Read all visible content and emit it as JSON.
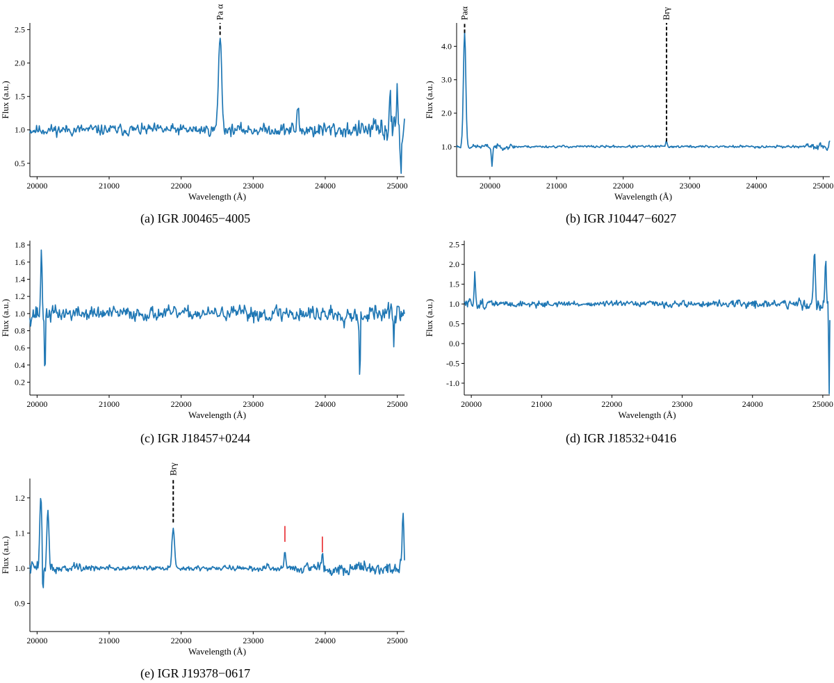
{
  "figure": {
    "captions": [
      "(a) IGR J00465−4005",
      "(b) IGR J10447−6027",
      "(c) IGR J18457+0244",
      "(d) IGR J18532+0416",
      "(e) IGR J19378−0617"
    ]
  },
  "colors": {
    "line": "#1f77b4",
    "marker": "#e8262b",
    "axis": "#000000"
  },
  "chart_data": [
    {
      "type": "line",
      "xlabel": "Wavelength (Å)",
      "ylabel": "Flux (a.u.)",
      "xlim": [
        19900,
        25100
      ],
      "ylim": [
        0.3,
        2.6
      ],
      "xticks": [
        20000,
        21000,
        22000,
        23000,
        24000,
        25000
      ],
      "yticks": [
        0.5,
        1.0,
        1.5,
        2.0,
        2.5
      ],
      "ytick_labels": [
        "0.5",
        "1.0",
        "1.5",
        "2.0",
        "2.5"
      ],
      "baseline": 1.0,
      "noise": 0.13,
      "noise_profile": [
        [
          19900,
          0.12
        ],
        [
          23300,
          0.12
        ],
        [
          23600,
          0.18
        ],
        [
          24600,
          0.18
        ],
        [
          24800,
          0.3
        ],
        [
          25100,
          0.35
        ]
      ],
      "features": [
        {
          "center": 22540,
          "amp": 1.4,
          "width": 22
        },
        {
          "center": 23620,
          "amp": 0.35,
          "width": 12
        },
        {
          "center": 24900,
          "amp": 0.65,
          "width": 10
        },
        {
          "center": 25000,
          "amp": 0.6,
          "width": 10
        },
        {
          "center": 25050,
          "amp": -0.55,
          "width": 8
        }
      ],
      "lines": [
        {
          "label": "Pa α",
          "x": 22540,
          "y_bottom": 2.42,
          "y_top": 2.6,
          "dashed": true
        }
      ],
      "seed": 11
    },
    {
      "type": "line",
      "xlabel": "Wavelength (Å)",
      "ylabel": "Flux (a.u.)",
      "xlim": [
        19500,
        25100
      ],
      "ylim": [
        0.1,
        4.7
      ],
      "xticks": [
        20000,
        21000,
        22000,
        23000,
        24000,
        25000
      ],
      "yticks": [
        1.0,
        2.0,
        3.0,
        4.0
      ],
      "ytick_labels": [
        "1.0",
        "2.0",
        "3.0",
        "4.0"
      ],
      "baseline": 1.0,
      "noise": 0.06,
      "noise_profile": [
        [
          19500,
          0.08
        ],
        [
          20300,
          0.12
        ],
        [
          20500,
          0.05
        ],
        [
          24700,
          0.06
        ],
        [
          24900,
          0.15
        ],
        [
          25100,
          0.2
        ]
      ],
      "features": [
        {
          "center": 19620,
          "amp": 3.45,
          "width": 18
        },
        {
          "center": 20030,
          "amp": -0.55,
          "width": 10
        },
        {
          "center": 22650,
          "amp": 0.15,
          "width": 12
        }
      ],
      "lines": [
        {
          "label": "Paα",
          "x": 19620,
          "y_bottom": 4.4,
          "y_top": 4.7,
          "dashed": true
        },
        {
          "label": "Brγ",
          "x": 22650,
          "y_bottom": 1.15,
          "y_top": 4.7,
          "dashed": true
        }
      ],
      "seed": 23
    },
    {
      "type": "line",
      "xlabel": "Wavelength (Å)",
      "ylabel": "Flux (a.u.)",
      "xlim": [
        19900,
        25100
      ],
      "ylim": [
        0.05,
        1.85
      ],
      "xticks": [
        20000,
        21000,
        22000,
        23000,
        24000,
        25000
      ],
      "yticks": [
        0.2,
        0.4,
        0.6,
        0.8,
        1.0,
        1.2,
        1.4,
        1.6,
        1.8
      ],
      "ytick_labels": [
        "0.2",
        "0.4",
        "0.6",
        "0.8",
        "1.0",
        "1.2",
        "1.4",
        "1.6",
        "1.8"
      ],
      "baseline": 1.0,
      "noise": 0.12,
      "noise_profile": [
        [
          19900,
          0.18
        ],
        [
          20300,
          0.13
        ],
        [
          22500,
          0.1
        ],
        [
          23000,
          0.14
        ],
        [
          25100,
          0.17
        ]
      ],
      "features": [
        {
          "center": 20060,
          "amp": 0.7,
          "width": 10
        },
        {
          "center": 20110,
          "amp": -0.85,
          "width": 6
        },
        {
          "center": 24480,
          "amp": -0.9,
          "width": 6
        },
        {
          "center": 24950,
          "amp": -0.35,
          "width": 6
        }
      ],
      "lines": [],
      "seed": 37
    },
    {
      "type": "line",
      "xlabel": "Wavelength (Å)",
      "ylabel": "Flux (a.u.)",
      "xlim": [
        19900,
        25100
      ],
      "ylim": [
        -1.3,
        2.6
      ],
      "xticks": [
        20000,
        21000,
        22000,
        23000,
        24000,
        25000
      ],
      "yticks": [
        -1.0,
        -0.5,
        0.0,
        0.5,
        1.0,
        1.5,
        2.0,
        2.5
      ],
      "ytick_labels": [
        "-1.0",
        "-0.5",
        "0.0",
        "0.5",
        "1.0",
        "1.5",
        "2.0",
        "2.5"
      ],
      "baseline": 1.0,
      "noise": 0.12,
      "noise_profile": [
        [
          19900,
          0.22
        ],
        [
          20500,
          0.12
        ],
        [
          22000,
          0.09
        ],
        [
          23000,
          0.13
        ],
        [
          24700,
          0.18
        ],
        [
          25100,
          0.4
        ]
      ],
      "features": [
        {
          "center": 20050,
          "amp": 0.8,
          "width": 10
        },
        {
          "center": 24880,
          "amp": 1.2,
          "width": 14
        },
        {
          "center": 25040,
          "amp": 1.2,
          "width": 10
        },
        {
          "center": 25090,
          "amp": -2.2,
          "width": 6
        }
      ],
      "lines": [],
      "seed": 51
    },
    {
      "type": "line",
      "xlabel": "Wavelength (Å)",
      "ylabel": "Flux (a.u.)",
      "xlim": [
        19900,
        25100
      ],
      "ylim": [
        0.82,
        1.255
      ],
      "xticks": [
        20000,
        21000,
        22000,
        23000,
        24000,
        25000
      ],
      "yticks": [
        0.9,
        1.0,
        1.1,
        1.2
      ],
      "ytick_labels": [
        "0.9",
        "1.0",
        "1.1",
        "1.2"
      ],
      "baseline": 1.0,
      "noise": 0.014,
      "noise_profile": [
        [
          19900,
          0.03
        ],
        [
          20400,
          0.018
        ],
        [
          21000,
          0.012
        ],
        [
          22500,
          0.01
        ],
        [
          23200,
          0.015
        ],
        [
          24500,
          0.028
        ],
        [
          25100,
          0.03
        ]
      ],
      "features": [
        {
          "center": 20050,
          "amp": 0.22,
          "width": 14
        },
        {
          "center": 20150,
          "amp": 0.17,
          "width": 14
        },
        {
          "center": 20080,
          "amp": -0.1,
          "width": 6
        },
        {
          "center": 21890,
          "amp": 0.12,
          "width": 18
        },
        {
          "center": 23440,
          "amp": 0.05,
          "width": 12
        },
        {
          "center": 23960,
          "amp": 0.04,
          "width": 12
        },
        {
          "center": 25080,
          "amp": 0.15,
          "width": 10
        }
      ],
      "lines": [
        {
          "label": "Brγ",
          "x": 21890,
          "y_bottom": 1.13,
          "y_top": 1.255,
          "dashed": true
        }
      ],
      "markers": [
        {
          "x": 23440,
          "y_bottom": 1.075,
          "y_top": 1.12
        },
        {
          "x": 23960,
          "y_bottom": 1.045,
          "y_top": 1.09
        }
      ],
      "seed": 73
    }
  ]
}
